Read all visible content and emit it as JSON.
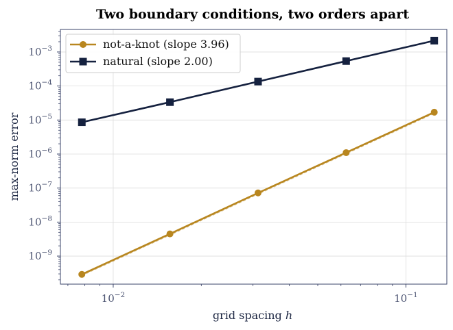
{
  "chart_data": {
    "type": "line",
    "title": "Two boundary conditions, two orders apart",
    "xlabel": "grid spacing ",
    "xlabel_var": "h",
    "ylabel": "max-norm error",
    "x_scale": "log",
    "y_scale": "log",
    "xlim": [
      0.0066,
      0.138
    ],
    "ylim": [
      1.5e-10,
      0.0046
    ],
    "x": [
      0.0078125,
      0.015625,
      0.03125,
      0.0625,
      0.125
    ],
    "x_ticks": [
      {
        "base": "10",
        "exp": "−2",
        "value": 0.01
      },
      {
        "base": "10",
        "exp": "−1",
        "value": 0.1
      }
    ],
    "y_ticks": [
      {
        "base": "10",
        "exp": "−9",
        "value": 1e-09
      },
      {
        "base": "10",
        "exp": "−8",
        "value": 1e-08
      },
      {
        "base": "10",
        "exp": "−7",
        "value": 1e-07
      },
      {
        "base": "10",
        "exp": "−6",
        "value": 1e-06
      },
      {
        "base": "10",
        "exp": "−5",
        "value": 1e-05
      },
      {
        "base": "10",
        "exp": "−4",
        "value": 0.0001
      },
      {
        "base": "10",
        "exp": "−3",
        "value": 0.001
      }
    ],
    "grid": true,
    "legend_position": "top-left",
    "series": [
      {
        "name": "not-a-knot (slope 3.96)",
        "color": "#b8861f",
        "marker": "circle",
        "values": [
          2.9e-10,
          4.5e-09,
          7.2e-08,
          1.1e-06,
          1.7e-05
        ]
      },
      {
        "name": "natural (slope 2.00)",
        "color": "#15213f",
        "marker": "square",
        "values": [
          8.6e-06,
          3.35e-05,
          0.000135,
          0.00054,
          0.00215
        ]
      }
    ]
  }
}
